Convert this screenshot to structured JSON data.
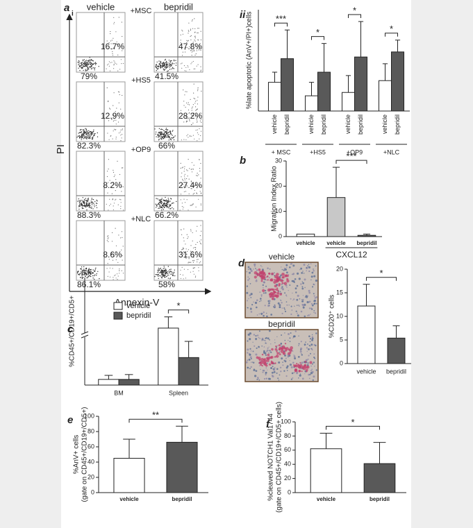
{
  "figure": {
    "panel_a": {
      "letter": "a",
      "part": "i",
      "columns": [
        "vehicle",
        "bepridil"
      ],
      "ylabel": "PI",
      "xlabel": "Annexin-V",
      "rows": [
        {
          "condition": "+MSC",
          "upper_right": [
            "16.7%",
            "47.8%"
          ],
          "lower_left": [
            "79%",
            "41.5%"
          ]
        },
        {
          "condition": "+HS5",
          "upper_right": [
            "12.9%",
            "28.2%"
          ],
          "lower_left": [
            "82.3%",
            "66%"
          ]
        },
        {
          "condition": "+OP9",
          "upper_right": [
            "8.2%",
            "27.4%"
          ],
          "lower_left": [
            "88.3%",
            "66.2%"
          ]
        },
        {
          "condition": "+NLC",
          "upper_right": [
            "8.6%",
            "31.6%"
          ],
          "lower_left": [
            "86.1%",
            "58%"
          ]
        }
      ]
    },
    "panel_d": {
      "letter": "d",
      "images": [
        "vehicle",
        "bepridil"
      ]
    }
  },
  "chart_data": [
    {
      "type": "bar",
      "panel": "ii",
      "ylabel": [
        "%late apoptotic (AnV+/PI+)cells"
      ],
      "ylim": [
        0,
        60
      ],
      "categories": [
        "+ MSC",
        "+HS5",
        "+OP9",
        "+NLC"
      ],
      "series": [
        {
          "name": "vehicle",
          "color": "#ffffff",
          "values": [
            17,
            9,
            11,
            18
          ],
          "errors": [
            6,
            8,
            10,
            10
          ]
        },
        {
          "name": "bepridil",
          "color": "#595959",
          "values": [
            31,
            23,
            32,
            35
          ],
          "errors": [
            17,
            17,
            21,
            7
          ]
        }
      ],
      "significance": [
        "***",
        "*",
        "*",
        "*"
      ]
    },
    {
      "type": "bar",
      "panel": "b",
      "ylabel": [
        "Migration Index Ratio"
      ],
      "ylim": [
        0,
        30
      ],
      "yticks": [
        0,
        10,
        20,
        30
      ],
      "categories": [
        "vehicle",
        "vehicle",
        "bepridil"
      ],
      "values": [
        1,
        15.5,
        0.5
      ],
      "errors": [
        null,
        12,
        0.5
      ],
      "colors": [
        "#ffffff",
        "#c8c8c8",
        "#595959"
      ],
      "group_label": "CXCL12",
      "significance": "***"
    },
    {
      "type": "bar",
      "panel": "c",
      "ylabel": [
        "%CD45+/CD19+/CD5+"
      ],
      "ylim": [
        0,
        30
      ],
      "ybreak": [
        3,
        5
      ],
      "categories": [
        "BM",
        "Spleen"
      ],
      "series": [
        {
          "name": "vehicle",
          "color": "#ffffff",
          "values": [
            0.35,
            7.5
          ],
          "errors": [
            0.25,
            5
          ]
        },
        {
          "name": "bepridil",
          "color": "#595959",
          "values": [
            0.35,
            1.7
          ],
          "errors": [
            0.3,
            1
          ]
        }
      ],
      "legend": "upper left",
      "significance": [
        null,
        "*"
      ]
    },
    {
      "type": "bar",
      "ylabel": [
        "%CD20⁺ cells"
      ],
      "ylim": [
        0,
        20
      ],
      "yticks": [
        0,
        5,
        10,
        15,
        20
      ],
      "categories": [
        "vehicle",
        "bepridil"
      ],
      "values": [
        12.2,
        5.4
      ],
      "errors": [
        4.6,
        2.6
      ],
      "colors": [
        "#ffffff",
        "#595959"
      ],
      "significance": "*"
    },
    {
      "type": "bar",
      "panel": "e",
      "ylabel": [
        "%AnV+ cells",
        "(gate on CD45+/CD19+/CD5+)"
      ],
      "ylim": [
        0,
        100
      ],
      "yticks": [
        0,
        20,
        40,
        60,
        80,
        100
      ],
      "categories": [
        "vehicle",
        "bepridil"
      ],
      "values": [
        45,
        66
      ],
      "errors": [
        25,
        21
      ],
      "colors": [
        "#ffffff",
        "#595959"
      ],
      "significance": "**"
    },
    {
      "type": "bar",
      "panel": "f",
      "ylabel": [
        "%cleaved NOTCH1 Val1744",
        "(gate on CD45+/CD19+/CD5+ cells)"
      ],
      "ylim": [
        0,
        100
      ],
      "yticks": [
        0,
        20,
        40,
        60,
        80,
        100
      ],
      "categories": [
        "vehicle",
        "bepridil"
      ],
      "values": [
        62,
        41
      ],
      "errors": [
        22,
        30
      ],
      "colors": [
        "#ffffff",
        "#595959"
      ],
      "significance": "*"
    }
  ]
}
